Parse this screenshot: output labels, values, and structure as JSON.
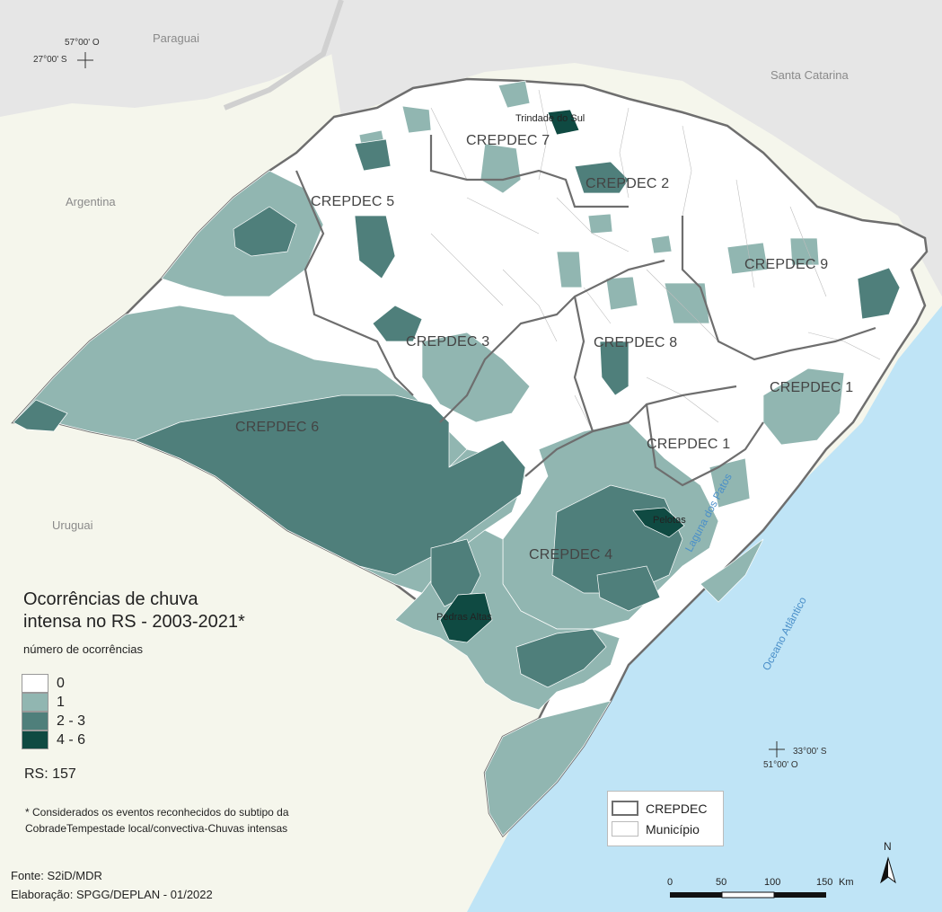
{
  "map": {
    "title_line1": "Ocorrências de chuva",
    "title_line2": "intensa no RS - 2003-2021*",
    "legend_title": "número de ocorrências",
    "legend": [
      {
        "label": "0",
        "color": "#ffffff"
      },
      {
        "label": "1",
        "color": "#91b6b1"
      },
      {
        "label": "2 - 3",
        "color": "#4f7f7b"
      },
      {
        "label": "4 - 6",
        "color": "#0f4a42"
      }
    ],
    "total": "RS: 157",
    "note": "* Considerados os eventos reconhecidos do subtipo da CobradeTempestade local/convectiva-Chuvas intensas",
    "source": "Fonte: S2iD/MDR",
    "author": "Elaboração: SPGG/DEPLAN - 01/2022",
    "boundary_legend": {
      "crepdec": "CREPDEC",
      "municipio": "Município"
    },
    "countries": {
      "paraguai": "Paraguai",
      "argentina": "Argentina",
      "uruguai": "Uruguai",
      "santa_catarina": "Santa Catarina"
    },
    "water": {
      "laguna": "Laguna dos Patos",
      "oceano": "Oceano Atlântico"
    },
    "regions": {
      "c1a": "CREPDEC 1",
      "c1b": "CREPDEC 1",
      "c2": "CREPDEC 2",
      "c3": "CREPDEC 3",
      "c4": "CREPDEC 4",
      "c5": "CREPDEC 5",
      "c6": "CREPDEC 6",
      "c7": "CREPDEC 7",
      "c8": "CREPDEC 8",
      "c9": "CREPDEC 9"
    },
    "cities": {
      "trindade": "Trindade do Sul",
      "pedras_altas": "Pedras Altas",
      "pelotas": "Pelotas"
    },
    "coords": {
      "nw_lon": "57°00' O",
      "nw_lat": "27°00' S",
      "se_lat": "33°00' S",
      "se_lon": "51°00' O"
    },
    "scale": {
      "t0": "0",
      "t50": "50",
      "t100": "100",
      "t150": "150",
      "unit": "Km"
    },
    "north": "N",
    "colors": {
      "ocean": "#bfe4f6",
      "land": "#f5f6ec",
      "neighbor": "#e6e6e6",
      "boundary": "#6e6e6e"
    }
  }
}
